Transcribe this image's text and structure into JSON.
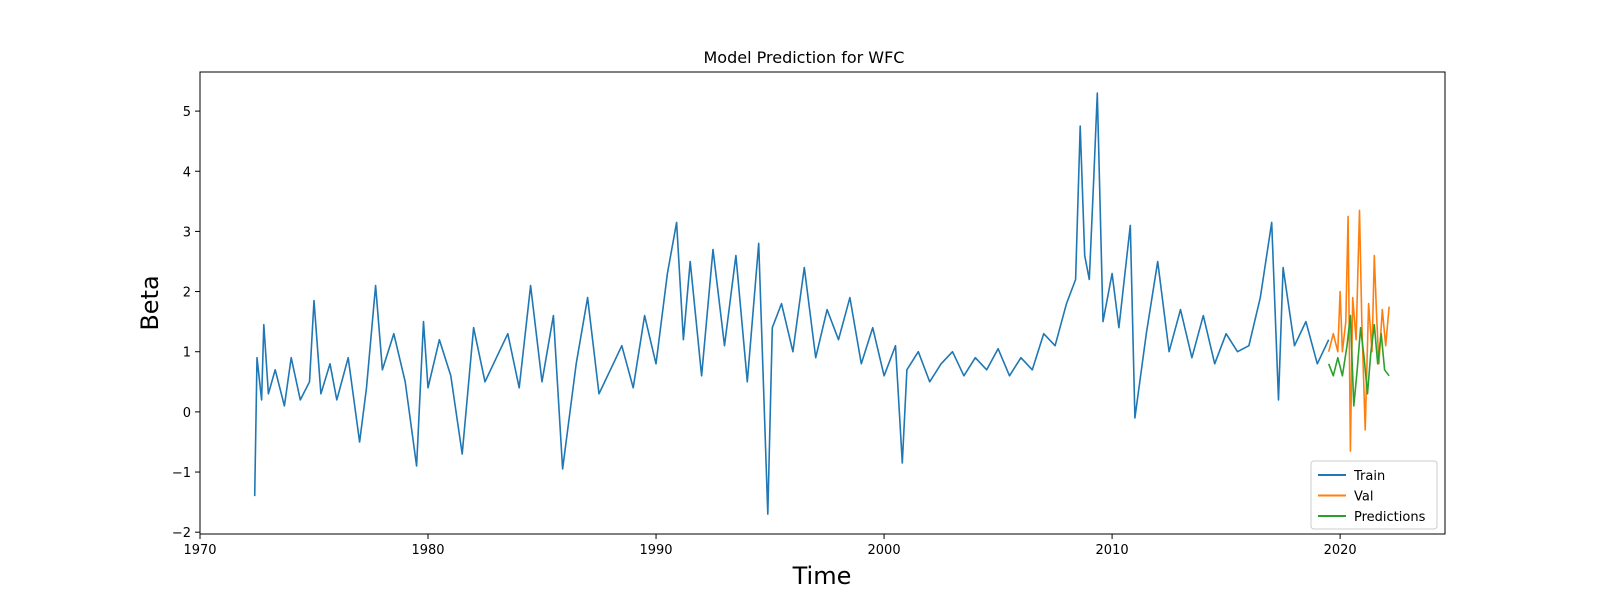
{
  "chart_data": {
    "type": "line",
    "title": "Model Prediction for WFC",
    "xlabel": "Time",
    "ylabel": "Beta",
    "xlim": [
      1970.0,
      2024.6
    ],
    "ylim": [
      -2.03,
      5.65
    ],
    "xticks": [
      1970,
      1980,
      1990,
      2000,
      2010,
      2020
    ],
    "yticks": [
      -2,
      -1,
      0,
      1,
      2,
      3,
      4,
      5
    ],
    "xtick_labels": [
      "1970",
      "1980",
      "1990",
      "2000",
      "2010",
      "2020"
    ],
    "ytick_labels": [
      "−2",
      "−1",
      "0",
      "1",
      "2",
      "3",
      "4",
      "5"
    ],
    "grid": false,
    "legend_position": "lower-right",
    "series": [
      {
        "name": "Train",
        "color": "#1f77b4",
        "x": [
          1972.4,
          1972.5,
          1972.7,
          1972.8,
          1973.0,
          1973.3,
          1973.7,
          1974.0,
          1974.4,
          1974.8,
          1975.0,
          1975.3,
          1975.7,
          1976.0,
          1976.5,
          1977.0,
          1977.3,
          1977.7,
          1978.0,
          1978.5,
          1979.0,
          1979.5,
          1979.8,
          1980.0,
          1980.5,
          1981.0,
          1981.5,
          1982.0,
          1982.5,
          1983.0,
          1983.5,
          1984.0,
          1984.5,
          1985.0,
          1985.5,
          1985.9,
          1986.5,
          1987.0,
          1987.5,
          1988.0,
          1988.5,
          1989.0,
          1989.5,
          1990.0,
          1990.5,
          1990.9,
          1991.2,
          1991.5,
          1992.0,
          1992.5,
          1993.0,
          1993.5,
          1994.0,
          1994.5,
          1994.9,
          1995.1,
          1995.5,
          1996.0,
          1996.5,
          1997.0,
          1997.5,
          1998.0,
          1998.5,
          1999.0,
          1999.5,
          2000.0,
          2000.5,
          2000.8,
          2001.0,
          2001.5,
          2002.0,
          2002.5,
          2003.0,
          2003.5,
          2004.0,
          2004.5,
          2005.0,
          2005.5,
          2006.0,
          2006.5,
          2007.0,
          2007.5,
          2008.0,
          2008.4,
          2008.6,
          2008.8,
          2009.0,
          2009.2,
          2009.35,
          2009.6,
          2010.0,
          2010.3,
          2010.8,
          2011.0,
          2011.5,
          2012.0,
          2012.5,
          2013.0,
          2013.5,
          2014.0,
          2014.5,
          2015.0,
          2015.5,
          2016.0,
          2016.5,
          2017.0,
          2017.3,
          2017.5,
          2018.0,
          2018.5,
          2019.0,
          2019.5
        ],
        "y": [
          -1.4,
          0.9,
          0.2,
          1.45,
          0.3,
          0.7,
          0.1,
          0.9,
          0.2,
          0.5,
          1.85,
          0.3,
          0.8,
          0.2,
          0.9,
          -0.5,
          0.4,
          2.1,
          0.7,
          1.3,
          0.5,
          -0.9,
          1.5,
          0.4,
          1.2,
          0.6,
          -0.7,
          1.4,
          0.5,
          0.9,
          1.3,
          0.4,
          2.1,
          0.5,
          1.6,
          -0.95,
          0.8,
          1.9,
          0.3,
          0.7,
          1.1,
          0.4,
          1.6,
          0.8,
          2.3,
          3.15,
          1.2,
          2.5,
          0.6,
          2.7,
          1.1,
          2.6,
          0.5,
          2.8,
          -1.7,
          1.4,
          1.8,
          1.0,
          2.4,
          0.9,
          1.7,
          1.2,
          1.9,
          0.8,
          1.4,
          0.6,
          1.1,
          -0.85,
          0.7,
          1.0,
          0.5,
          0.8,
          1.0,
          0.6,
          0.9,
          0.7,
          1.05,
          0.6,
          0.9,
          0.7,
          1.3,
          1.1,
          1.8,
          2.2,
          4.75,
          2.6,
          2.2,
          3.9,
          5.3,
          1.5,
          2.3,
          1.4,
          3.1,
          -0.1,
          1.3,
          2.5,
          1.0,
          1.7,
          0.9,
          1.6,
          0.8,
          1.3,
          1.0,
          1.1,
          1.9,
          3.15,
          0.2,
          2.4,
          1.1,
          1.5,
          0.8,
          1.2
        ]
      },
      {
        "name": "Val",
        "color": "#ff7f0e",
        "x": [
          2019.5,
          2019.7,
          2019.9,
          2020.0,
          2020.1,
          2020.25,
          2020.35,
          2020.45,
          2020.55,
          2020.7,
          2020.85,
          2020.95,
          2021.1,
          2021.25,
          2021.4,
          2021.5,
          2021.6,
          2021.7,
          2021.85,
          2022.0,
          2022.15
        ],
        "y": [
          1.0,
          1.3,
          1.0,
          2.0,
          1.0,
          1.5,
          3.25,
          -0.65,
          1.9,
          1.2,
          3.35,
          1.5,
          -0.3,
          1.8,
          1.0,
          2.6,
          1.6,
          0.8,
          1.7,
          1.1,
          1.75
        ]
      },
      {
        "name": "Predictions",
        "color": "#2ca02c",
        "x": [
          2019.5,
          2019.7,
          2019.9,
          2020.1,
          2020.3,
          2020.45,
          2020.6,
          2020.75,
          2020.9,
          2021.05,
          2021.2,
          2021.35,
          2021.5,
          2021.65,
          2021.8,
          2021.95,
          2022.15
        ],
        "y": [
          0.8,
          0.6,
          0.9,
          0.6,
          1.1,
          1.6,
          0.1,
          0.7,
          1.4,
          0.9,
          0.3,
          1.0,
          1.45,
          0.8,
          1.3,
          0.7,
          0.6
        ]
      }
    ]
  }
}
